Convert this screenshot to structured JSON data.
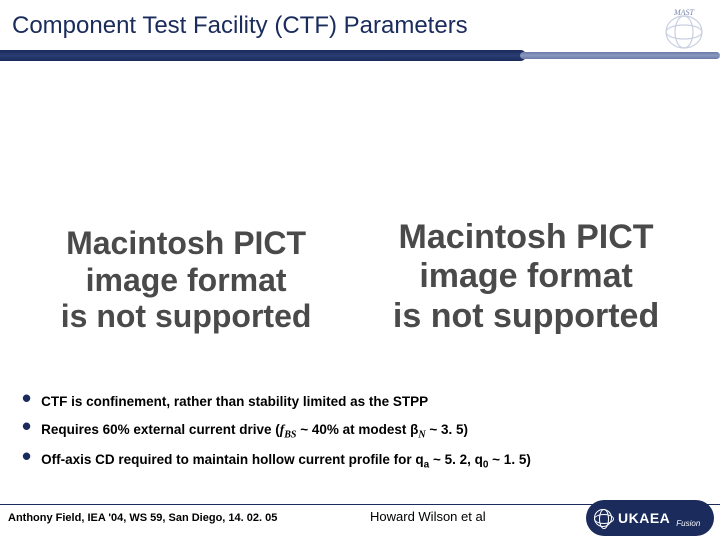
{
  "title": "Component Test Facility (CTF) Parameters",
  "top_logo_label": "MAST",
  "placeholders": {
    "left": {
      "line1": "Macintosh PICT",
      "line2": "image format",
      "line3": "is not supported",
      "fontsize": 32
    },
    "right": {
      "line1": "Macintosh PICT",
      "line2": "image format",
      "line3": "is not supported",
      "fontsize": 34
    }
  },
  "bullets": [
    {
      "text_html": "CTF is confinement, rather than stability limited as the STPP"
    },
    {
      "text_html": "Requires 60% external current drive (<span class='ital'>f<sub>BS</sub></span> ~ 40% at modest β<sub><span class='ital'>N</span></sub> ~ 3. 5)"
    },
    {
      "text_html": "Off-axis CD required to maintain hollow current profile for q<sub>a</sub> ~ 5. 2, q<sub>0</sub> ~ 1. 5)"
    }
  ],
  "footer": {
    "left": "Anthony Field, IEA '04, WS 59, San Diego, 14. 02. 05",
    "center": "Howard Wilson et al",
    "logo_primary": "UKAEA",
    "logo_secondary": "Fusion"
  },
  "colors": {
    "brand_dark": "#1a2b5c",
    "brand_light": "#8a98c0",
    "text": "#000000",
    "placeholder_text": "#4a4a4a",
    "background": "#ffffff"
  }
}
